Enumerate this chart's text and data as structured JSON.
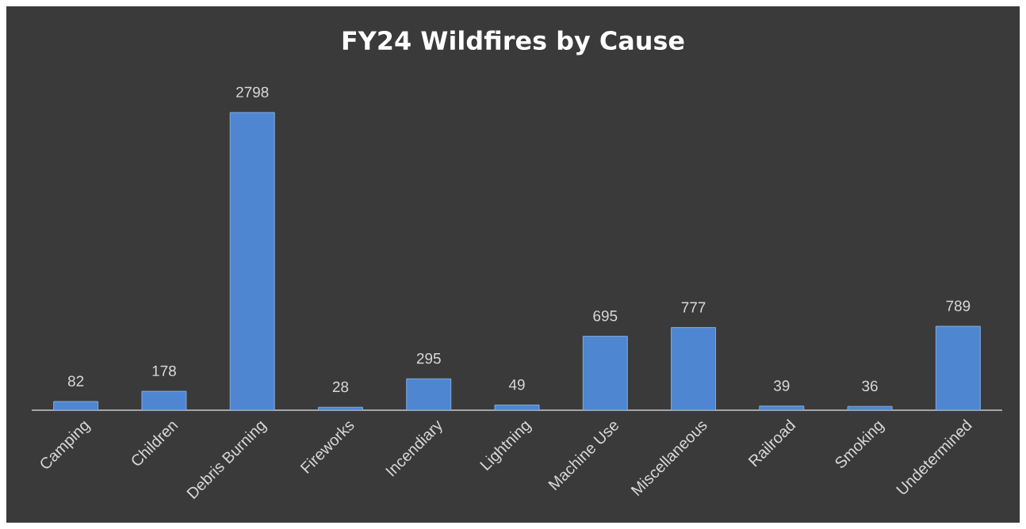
{
  "chart_data": {
    "type": "bar",
    "title": "FY24 Wildfires by Cause",
    "categories": [
      "Camping",
      "Children",
      "Debris Burning",
      "Fireworks",
      "Incendiary",
      "Lightning",
      "Machine Use",
      "Miscellaneous",
      "Railroad",
      "Smoking",
      "Undetermined"
    ],
    "values": [
      82,
      178,
      2798,
      28,
      295,
      49,
      695,
      777,
      39,
      36,
      789
    ],
    "color": "#4f86d2",
    "tick_labels": "x",
    "data_labels": true
  }
}
